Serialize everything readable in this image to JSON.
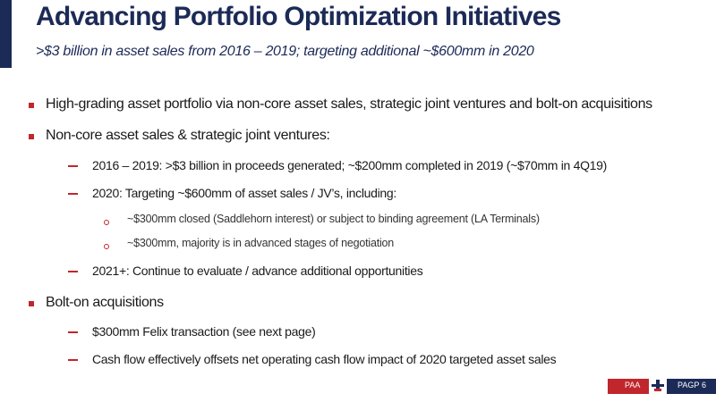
{
  "header": {
    "title": "Advancing Portfolio Optimization Initiatives",
    "subtitle": ">$3 billion in asset sales from 2016 – 2019; targeting additional ~$600mm in 2020"
  },
  "bullets": {
    "b1": "High-grading asset portfolio via non-core asset sales, strategic joint ventures and bolt-on acquisitions",
    "b2": "Non-core asset sales & strategic joint ventures:",
    "b2_1": "2016 – 2019: >$3 billion in proceeds generated; ~$200mm completed in 2019 (~$70mm in 4Q19)",
    "b2_2": "2020: Targeting ~$600mm of asset sales / JV’s, including:",
    "b2_2_1": "~$300mm closed (Saddlehorn interest) or subject to binding agreement (LA Terminals)",
    "b2_2_2": "~$300mm, majority is in advanced stages of negotiation",
    "b2_3": "2021+: Continue to evaluate / advance additional opportunities",
    "b3": "Bolt-on acquisitions",
    "b3_1": "$300mm Felix transaction (see next page)",
    "b3_2": "Cash flow effectively offsets net operating cash flow impact of 2020 targeted asset sales"
  },
  "footer": {
    "left_label": "PAA",
    "right_label": "PAGP",
    "page_number": "6",
    "logo_icon": "paa-logo-icon"
  },
  "colors": {
    "navy": "#1c2a57",
    "red": "#c0262c"
  }
}
